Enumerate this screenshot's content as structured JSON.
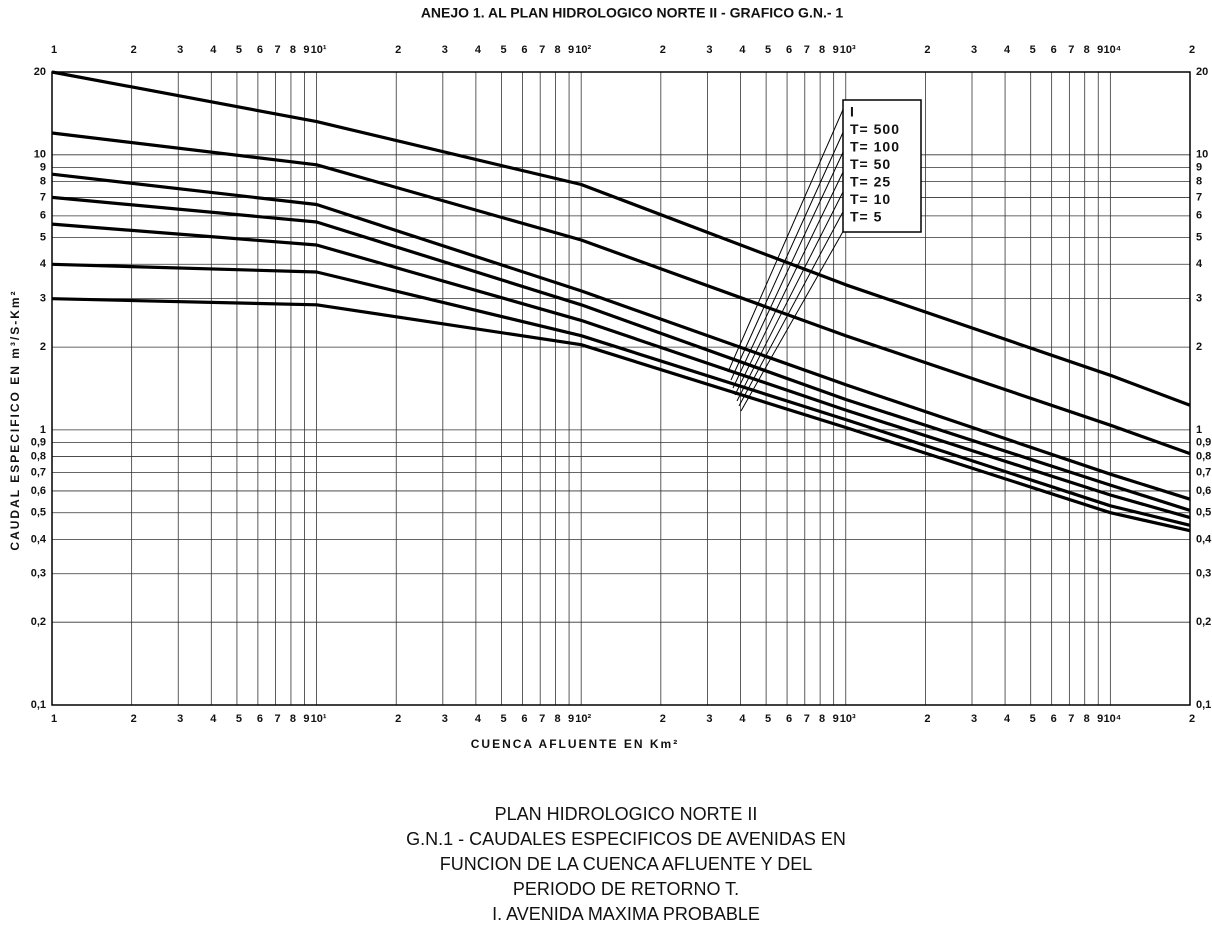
{
  "chart_data": {
    "type": "line",
    "title": "ANEJO 1. AL PLAN HIDROLOGICO NORTE II - GRAFICO G.N.- 1",
    "xlabel": "CUENCA   AFLUENTE  EN  Km²",
    "ylabel": "CAUDAL  ESPECIFICO  EN  m³/S-Km²",
    "x": [
      1,
      10,
      100,
      1000,
      10000,
      20000
    ],
    "series": [
      {
        "name": "I",
        "color": "#000000",
        "values": [
          20,
          13.2,
          7.8,
          3.37,
          1.58,
          1.23
        ]
      },
      {
        "name": "T= 500",
        "color": "#000000",
        "values": [
          12,
          9.2,
          4.9,
          2.2,
          1.04,
          0.82
        ]
      },
      {
        "name": "T= 100",
        "color": "#000000",
        "values": [
          8.5,
          6.6,
          3.2,
          1.46,
          0.69,
          0.56
        ]
      },
      {
        "name": "T=  50",
        "color": "#000000",
        "values": [
          7.0,
          5.7,
          2.85,
          1.29,
          0.63,
          0.51
        ]
      },
      {
        "name": "T=  25",
        "color": "#000000",
        "values": [
          5.6,
          4.7,
          2.5,
          1.18,
          0.58,
          0.48
        ]
      },
      {
        "name": "T=  10",
        "color": "#000000",
        "values": [
          4.0,
          3.75,
          2.2,
          1.09,
          0.53,
          0.45
        ]
      },
      {
        "name": "T=   5",
        "color": "#000000",
        "values": [
          3.0,
          2.85,
          2.04,
          1.02,
          0.5,
          0.43
        ]
      }
    ],
    "xscale": "log",
    "yscale": "log",
    "xlim": [
      1,
      20000
    ],
    "ylim": [
      0.1,
      20
    ],
    "xticks": [
      1,
      2,
      3,
      4,
      5,
      6,
      7,
      8,
      9,
      {
        "value": 10,
        "label": "10¹"
      },
      {
        "value": 20,
        "label": "2"
      },
      {
        "value": 30,
        "label": "3"
      },
      {
        "value": 40,
        "label": "4"
      },
      {
        "value": 50,
        "label": "5"
      },
      {
        "value": 60,
        "label": "6"
      },
      {
        "value": 70,
        "label": "7"
      },
      {
        "value": 80,
        "label": "8"
      },
      {
        "value": 90,
        "label": "9"
      },
      {
        "value": 100,
        "label": "10²"
      },
      {
        "value": 200,
        "label": "2"
      },
      {
        "value": 300,
        "label": "3"
      },
      {
        "value": 400,
        "label": "4"
      },
      {
        "value": 500,
        "label": "5"
      },
      {
        "value": 600,
        "label": "6"
      },
      {
        "value": 700,
        "label": "7"
      },
      {
        "value": 800,
        "label": "8"
      },
      {
        "value": 900,
        "label": "9"
      },
      {
        "value": 1000,
        "label": "10³"
      },
      {
        "value": 2000,
        "label": "2"
      },
      {
        "value": 3000,
        "label": "3"
      },
      {
        "value": 4000,
        "label": "4"
      },
      {
        "value": 5000,
        "label": "5"
      },
      {
        "value": 6000,
        "label": "6"
      },
      {
        "value": 7000,
        "label": "7"
      },
      {
        "value": 8000,
        "label": "8"
      },
      {
        "value": 9000,
        "label": "9"
      },
      {
        "value": 10000,
        "label": "10⁴"
      },
      {
        "value": 20000,
        "label": "2"
      }
    ],
    "yticks": [
      {
        "value": 0.1,
        "label": "0,1"
      },
      {
        "value": 0.2,
        "label": "0,2"
      },
      {
        "value": 0.3,
        "label": "0,3"
      },
      {
        "value": 0.4,
        "label": "0,4"
      },
      {
        "value": 0.5,
        "label": "0,5"
      },
      {
        "value": 0.6,
        "label": "0,6"
      },
      {
        "value": 0.7,
        "label": "0,7"
      },
      {
        "value": 0.8,
        "label": "0,8"
      },
      {
        "value": 0.9,
        "label": "0,9"
      },
      1,
      2,
      3,
      4,
      5,
      6,
      7,
      8,
      9,
      10,
      20
    ],
    "grid": true,
    "legend": "upper-center"
  },
  "caption": {
    "lines": [
      "PLAN HIDROLOGICO NORTE II",
      "G.N.1 - CAUDALES ESPECIFICOS DE AVENIDAS EN",
      "FUNCION DE LA CUENCA AFLUENTE Y DEL",
      "PERIODO DE RETORNO T.",
      "I. AVENIDA MAXIMA PROBABLE"
    ]
  }
}
